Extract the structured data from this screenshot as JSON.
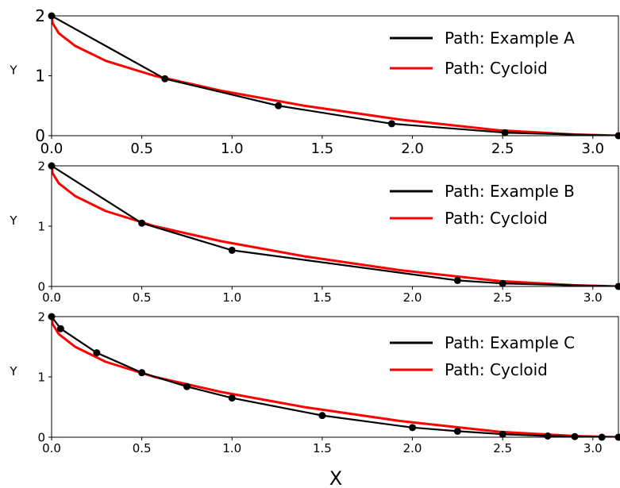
{
  "figure": {
    "xlabel": "X"
  },
  "chart_data": [
    {
      "type": "line",
      "title": "",
      "xlabel": "",
      "ylabel": "Y",
      "xlim": [
        0,
        3.1416
      ],
      "ylim": [
        0,
        2
      ],
      "xticks": [
        0.0,
        0.5,
        1.0,
        1.5,
        2.0,
        2.5,
        3.0
      ],
      "xtick_labels": [
        "0.0",
        "0.5",
        "1.0",
        "1.5",
        "2.0",
        "2.5",
        "3.0"
      ],
      "yticks": [
        0,
        1,
        2
      ],
      "ytick_labels": [
        "0",
        "1",
        "2"
      ],
      "legend_position": "top-right",
      "series": [
        {
          "name": "Path: Example A",
          "color": "#000000",
          "markers": true,
          "x": [
            0.0,
            0.628,
            1.257,
            1.885,
            2.513,
            3.1416
          ],
          "y": [
            2.0,
            0.95,
            0.5,
            0.2,
            0.05,
            0.0
          ]
        },
        {
          "name": "Path: Cycloid",
          "color": "#ff0000",
          "markers": false,
          "x": [
            0.0,
            0.005,
            0.04,
            0.13,
            0.3,
            0.57,
            0.94,
            1.4,
            1.93,
            2.48,
            2.9,
            3.1416
          ],
          "y": [
            2.0,
            1.88,
            1.71,
            1.5,
            1.25,
            1.0,
            0.75,
            0.5,
            0.27,
            0.09,
            0.02,
            0.0
          ]
        }
      ]
    },
    {
      "type": "line",
      "title": "",
      "xlabel": "",
      "ylabel": "Y",
      "xlim": [
        0,
        3.1416
      ],
      "ylim": [
        0,
        2
      ],
      "xticks": [
        0.0,
        0.5,
        1.0,
        1.5,
        2.0,
        2.5,
        3.0
      ],
      "xtick_labels": [
        "0.0",
        "0.5",
        "1.0",
        "1.5",
        "2.0",
        "2.5",
        "3.0"
      ],
      "yticks": [
        0,
        1,
        2
      ],
      "ytick_labels": [
        "0",
        "1",
        "2"
      ],
      "legend_position": "top-right",
      "series": [
        {
          "name": "Path: Example B",
          "color": "#000000",
          "markers": true,
          "x": [
            0.0,
            0.5,
            1.0,
            2.25,
            2.5,
            3.1416
          ],
          "y": [
            2.0,
            1.05,
            0.6,
            0.1,
            0.05,
            0.0
          ]
        },
        {
          "name": "Path: Cycloid",
          "color": "#ff0000",
          "markers": false,
          "x": [
            0.0,
            0.005,
            0.04,
            0.13,
            0.3,
            0.57,
            0.94,
            1.4,
            1.93,
            2.48,
            2.9,
            3.1416
          ],
          "y": [
            2.0,
            1.88,
            1.71,
            1.5,
            1.25,
            1.0,
            0.75,
            0.5,
            0.27,
            0.09,
            0.02,
            0.0
          ]
        }
      ]
    },
    {
      "type": "line",
      "title": "",
      "xlabel": "",
      "ylabel": "Y",
      "xlim": [
        0,
        3.1416
      ],
      "ylim": [
        0,
        2
      ],
      "xticks": [
        0.0,
        0.5,
        1.0,
        1.5,
        2.0,
        2.5,
        3.0
      ],
      "xtick_labels": [
        "0.0",
        "0.5",
        "1.0",
        "1.5",
        "2.0",
        "2.5",
        "3.0"
      ],
      "yticks": [
        0,
        1,
        2
      ],
      "ytick_labels": [
        "0",
        "1",
        "2"
      ],
      "legend_position": "top-right",
      "series": [
        {
          "name": "Path: Example C",
          "color": "#000000",
          "markers": true,
          "x": [
            0.0,
            0.05,
            0.25,
            0.5,
            0.75,
            1.0,
            1.5,
            2.0,
            2.25,
            2.5,
            2.75,
            2.9,
            3.05,
            3.1416
          ],
          "y": [
            2.0,
            1.8,
            1.4,
            1.07,
            0.84,
            0.65,
            0.36,
            0.16,
            0.1,
            0.05,
            0.02,
            0.01,
            0.0,
            0.0
          ]
        },
        {
          "name": "Path: Cycloid",
          "color": "#ff0000",
          "markers": false,
          "x": [
            0.0,
            0.005,
            0.04,
            0.13,
            0.3,
            0.57,
            0.94,
            1.4,
            1.93,
            2.48,
            2.9,
            3.1416
          ],
          "y": [
            2.0,
            1.88,
            1.71,
            1.5,
            1.25,
            1.0,
            0.75,
            0.5,
            0.27,
            0.09,
            0.02,
            0.0
          ]
        }
      ]
    }
  ]
}
